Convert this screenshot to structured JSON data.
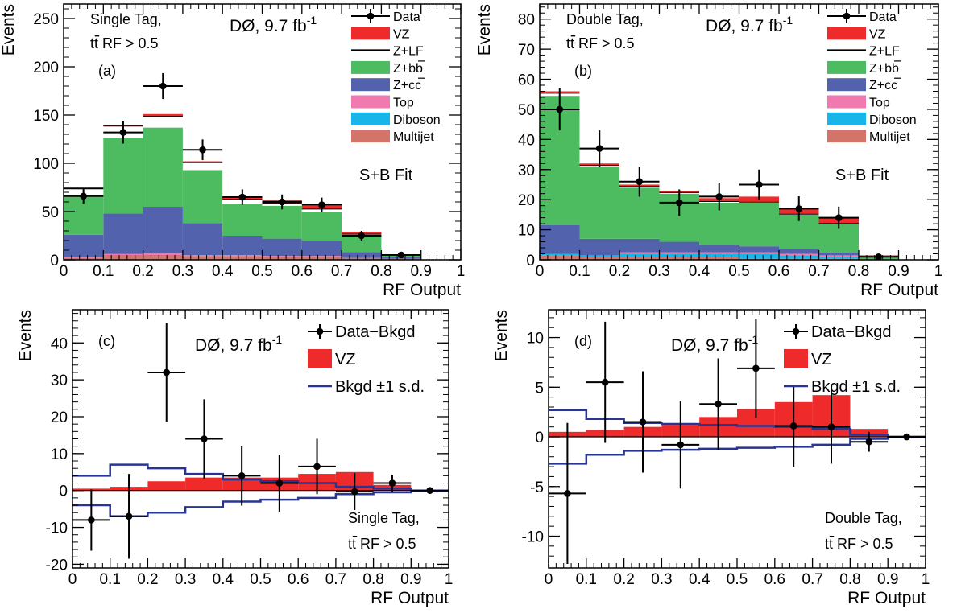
{
  "colors": {
    "VZ": "#ee2a2a",
    "Z+LF": "#000000",
    "Z+bb": "#4dbc60",
    "Z+cc": "#5262ad",
    "Top": "#f07ab0",
    "Diboson": "#18b6e8",
    "Multijet": "#d27468",
    "Data": "#000000",
    "Data-Bkgd": "#000000",
    "Bkgd band": "#283593"
  },
  "chart_data": [
    {
      "type": "histogram-stack",
      "panel": "(a)",
      "experiment": "DØ, 9.7 fb",
      "lumi_exp": "-1",
      "region_line1": "Single Tag,",
      "region_line2": "tt RF > 0.5",
      "fit_label": "S+B Fit",
      "xlabel": "RF Output",
      "ylabel": "Events",
      "xlim": [
        0,
        1
      ],
      "ylim": [
        0,
        265
      ],
      "x_ticks": [
        "0",
        "0.1",
        "0.2",
        "0.3",
        "0.4",
        "0.5",
        "0.6",
        "0.7",
        "0.8",
        "0.9",
        "1"
      ],
      "y_ticks": [
        0,
        50,
        100,
        150,
        200,
        250
      ],
      "bin_edges": [
        0,
        0.1,
        0.2,
        0.3,
        0.4,
        0.5,
        0.6,
        0.7,
        0.8,
        0.9,
        1.0
      ],
      "legend_position": "top-right",
      "legend": [
        "Data",
        "VZ",
        "Z+LF",
        "Z+bb",
        "Z+cc",
        "Top",
        "Diboson",
        "Multijet"
      ],
      "stack": [
        {
          "name": "Multijet",
          "values": [
            2,
            5,
            5,
            4,
            4,
            3,
            3,
            2,
            1,
            0
          ]
        },
        {
          "name": "Diboson",
          "values": [
            0,
            0,
            0,
            0,
            0,
            0,
            0,
            0,
            0,
            0
          ]
        },
        {
          "name": "Top",
          "values": [
            1,
            1,
            2,
            1,
            1,
            1,
            1,
            0,
            0,
            0
          ]
        },
        {
          "name": "Z+cc",
          "values": [
            23,
            42,
            48,
            33,
            20,
            18,
            16,
            6,
            2,
            0
          ]
        },
        {
          "name": "Z+bb",
          "values": [
            41,
            78,
            82,
            55,
            33,
            34,
            30,
            17,
            2,
            0
          ]
        },
        {
          "name": "Z+LF",
          "values": [
            7,
            13,
            12,
            8,
            5,
            3,
            3,
            2,
            0,
            0
          ]
        },
        {
          "name": "VZ",
          "values": [
            0,
            1,
            2,
            1,
            2,
            3,
            3,
            2,
            0,
            0
          ]
        }
      ],
      "data": {
        "x": [
          0.05,
          0.15,
          0.25,
          0.35,
          0.45,
          0.55,
          0.65,
          0.75,
          0.85
        ],
        "y": [
          66,
          132,
          180,
          114,
          65,
          60,
          57,
          25,
          5
        ],
        "yerr": [
          8,
          11.5,
          13.4,
          10.7,
          8,
          7.7,
          7.5,
          5,
          2.2
        ]
      }
    },
    {
      "type": "histogram-stack",
      "panel": "(b)",
      "experiment": "DØ, 9.7 fb",
      "lumi_exp": "-1",
      "region_line1": "Double Tag,",
      "region_line2": "tt RF > 0.5",
      "fit_label": "S+B Fit",
      "xlabel": "RF Output",
      "ylabel": "Events",
      "xlim": [
        0,
        1
      ],
      "ylim": [
        0,
        85
      ],
      "x_ticks": [
        "0",
        "0.1",
        "0.2",
        "0.3",
        "0.4",
        "0.5",
        "0.6",
        "0.7",
        "0.8",
        "0.9",
        "1"
      ],
      "y_ticks": [
        0,
        10,
        20,
        30,
        40,
        50,
        60,
        70,
        80
      ],
      "bin_edges": [
        0,
        0.1,
        0.2,
        0.3,
        0.4,
        0.5,
        0.6,
        0.7,
        0.8,
        0.9,
        1.0
      ],
      "legend_position": "top-right",
      "legend": [
        "Data",
        "VZ",
        "Z+LF",
        "Z+bb",
        "Z+cc",
        "Top",
        "Diboson",
        "Multijet"
      ],
      "stack": [
        {
          "name": "Multijet",
          "values": [
            1.5,
            1,
            1,
            1,
            1,
            0.5,
            0.5,
            0.5,
            0,
            0
          ]
        },
        {
          "name": "Diboson",
          "values": [
            0.5,
            0.5,
            1,
            1,
            1,
            1.5,
            1,
            0.5,
            0,
            0
          ]
        },
        {
          "name": "Top",
          "values": [
            0,
            0,
            0.5,
            0.5,
            0.5,
            0.5,
            0.5,
            0.5,
            0,
            0
          ]
        },
        {
          "name": "Z+cc",
          "values": [
            9.5,
            5.5,
            4.5,
            3.5,
            2.5,
            2,
            1.5,
            1,
            0,
            0
          ]
        },
        {
          "name": "Z+bb",
          "values": [
            43,
            24,
            17,
            16,
            14,
            14.5,
            11.5,
            9.5,
            1,
            0
          ]
        },
        {
          "name": "Z+LF",
          "values": [
            1,
            0.5,
            0.5,
            0.5,
            0.5,
            0.3,
            0.3,
            0.2,
            0,
            0
          ]
        },
        {
          "name": "VZ",
          "values": [
            0.5,
            0.5,
            0.5,
            0.5,
            1,
            1.7,
            1.7,
            2,
            0.5,
            0
          ]
        }
      ],
      "data": {
        "x": [
          0.05,
          0.15,
          0.25,
          0.35,
          0.45,
          0.55,
          0.65,
          0.75,
          0.85
        ],
        "y": [
          50,
          37,
          26,
          19,
          21,
          25,
          17,
          14,
          1
        ],
        "yerr": [
          7,
          6,
          5,
          4.4,
          4.6,
          5,
          4.1,
          3.7,
          1
        ]
      }
    },
    {
      "type": "histogram-subtracted",
      "panel": "(c)",
      "experiment": "DØ, 9.7 fb",
      "lumi_exp": "-1",
      "region_line1": "Single Tag,",
      "region_line2": "tt RF > 0.5",
      "xlabel": "RF Output",
      "ylabel": "Events",
      "xlim": [
        0,
        1
      ],
      "ylim": [
        -21,
        49
      ],
      "x_ticks": [
        "0",
        "0.1",
        "0.2",
        "0.3",
        "0.4",
        "0.5",
        "0.6",
        "0.7",
        "0.8",
        "0.9",
        "1"
      ],
      "y_ticks": [
        -20,
        -10,
        0,
        10,
        20,
        30,
        40
      ],
      "bin_edges": [
        0,
        0.1,
        0.2,
        0.3,
        0.4,
        0.5,
        0.6,
        0.7,
        0.8,
        0.9,
        1.0
      ],
      "legend_position": "top-right",
      "legend": [
        "Data−Bkgd",
        "VZ",
        "Bkgd ±1 s.d."
      ],
      "vz": [
        0.5,
        1,
        2.5,
        3.5,
        3.5,
        3.5,
        4.5,
        5,
        1.5,
        0
      ],
      "band_upper": [
        4,
        7,
        6,
        4.5,
        3,
        2.5,
        2,
        1,
        0.5,
        0
      ],
      "band_lower": [
        -4,
        -7,
        -6,
        -4.5,
        -3,
        -2.5,
        -2,
        -1,
        -0.5,
        0
      ],
      "data": {
        "x": [
          0.05,
          0.15,
          0.25,
          0.35,
          0.45,
          0.55,
          0.65,
          0.75,
          0.85,
          0.95
        ],
        "y": [
          -8,
          -7,
          32,
          14,
          4,
          2,
          6.5,
          -0.3,
          2,
          0
        ],
        "yerr": [
          8.3,
          11.5,
          13.4,
          10.7,
          8.1,
          7.7,
          7.5,
          5,
          2.3,
          0
        ]
      }
    },
    {
      "type": "histogram-subtracted",
      "panel": "(d)",
      "experiment": "DØ, 9.7 fb",
      "lumi_exp": "-1",
      "region_line1": "Double Tag,",
      "region_line2": "tt RF > 0.5",
      "xlabel": "RF Output",
      "ylabel": "Events",
      "xlim": [
        0,
        1
      ],
      "ylim": [
        -13.2,
        12.8
      ],
      "x_ticks": [
        "0",
        "0.1",
        "0.2",
        "0.3",
        "0.4",
        "0.5",
        "0.6",
        "0.7",
        "0.8",
        "0.9",
        "1"
      ],
      "y_ticks": [
        -10,
        -5,
        0,
        5,
        10
      ],
      "y_tick_labels": [
        "-10",
        "-5",
        "0",
        "5",
        "10"
      ],
      "bin_edges": [
        0,
        0.1,
        0.2,
        0.3,
        0.4,
        0.5,
        0.6,
        0.7,
        0.8,
        0.9,
        1.0
      ],
      "legend_position": "top-right",
      "legend": [
        "Data−Bkgd",
        "VZ",
        "Bkgd ±1 s.d."
      ],
      "vz": [
        0.5,
        0.7,
        1,
        1.2,
        2,
        2.8,
        3.5,
        4.2,
        0.8,
        0
      ],
      "band_upper": [
        2.7,
        1.8,
        1.4,
        1.3,
        1.2,
        1.1,
        1,
        0.8,
        0.2,
        0
      ],
      "band_lower": [
        -2.7,
        -1.8,
        -1.4,
        -1.3,
        -1.2,
        -1.1,
        -1,
        -0.8,
        -0.2,
        0
      ],
      "data": {
        "x": [
          0.05,
          0.15,
          0.25,
          0.35,
          0.45,
          0.55,
          0.65,
          0.75,
          0.85,
          0.95
        ],
        "y": [
          -5.7,
          5.5,
          1.5,
          -0.8,
          3.3,
          6.9,
          1.1,
          1,
          -0.5,
          0
        ],
        "yerr": [
          7.1,
          6.1,
          5.1,
          4.4,
          4.6,
          5,
          4.1,
          3.7,
          1,
          0
        ]
      }
    }
  ]
}
